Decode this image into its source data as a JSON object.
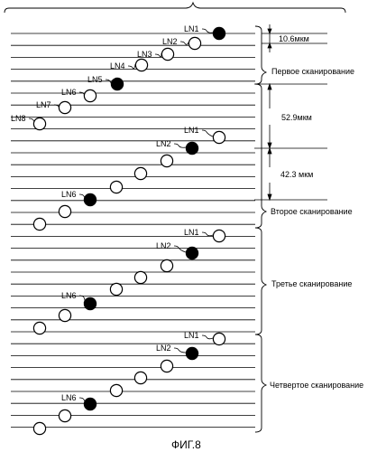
{
  "scan_labels": {
    "first": "Первое сканирование",
    "second": "Второе сканирование",
    "third": "Третье сканирование",
    "fourth": "Четвертое сканирование"
  },
  "dimensions": {
    "d1": "10.6мкм",
    "d2": "52.9мкм",
    "d3": "42.3 мкм"
  },
  "nozzle_labels": {
    "LN1": "LN1",
    "LN2": "LN2",
    "LN3": "LN3",
    "LN4": "LN4",
    "LN5": "LN5",
    "LN6": "LN6",
    "LN7": "LN7",
    "LN8": "LN8"
  },
  "caption": "ФИГ.8"
}
